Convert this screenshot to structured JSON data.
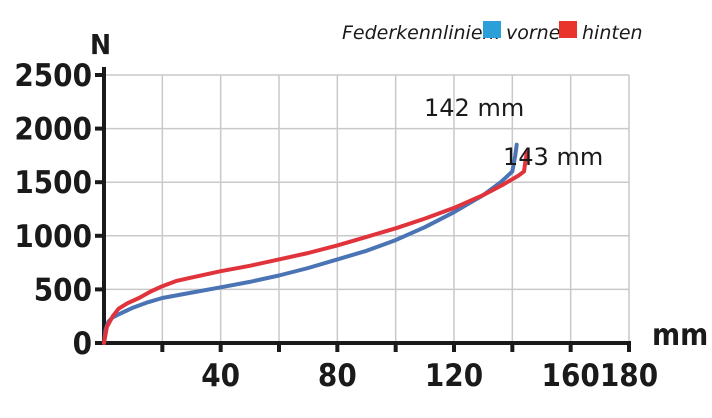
{
  "chart_data": {
    "type": "line",
    "title": "",
    "xlabel": "mm",
    "ylabel": "N",
    "xlim": [
      0,
      180
    ],
    "ylim": [
      0,
      2500
    ],
    "x_ticks": [
      40,
      80,
      120,
      160,
      180
    ],
    "y_ticks": [
      0,
      500,
      1000,
      1500,
      2000,
      2500
    ],
    "grid": true,
    "legend": {
      "title": "Federkennlinien:",
      "placement": "top-right",
      "entries": [
        {
          "name": "vorne",
          "color": "#2a9fd8"
        },
        {
          "name": "hinten",
          "color": "#e8342a"
        }
      ]
    },
    "series": [
      {
        "name": "vorne",
        "color": "#4a74b4",
        "points": [
          [
            0,
            0
          ],
          [
            0.5,
            120
          ],
          [
            1.5,
            200
          ],
          [
            3,
            240
          ],
          [
            6,
            280
          ],
          [
            10,
            330
          ],
          [
            15,
            380
          ],
          [
            20,
            420
          ],
          [
            30,
            470
          ],
          [
            40,
            520
          ],
          [
            50,
            570
          ],
          [
            60,
            630
          ],
          [
            70,
            700
          ],
          [
            80,
            780
          ],
          [
            90,
            860
          ],
          [
            100,
            960
          ],
          [
            110,
            1080
          ],
          [
            120,
            1220
          ],
          [
            130,
            1380
          ],
          [
            136,
            1500
          ],
          [
            140,
            1600
          ],
          [
            141,
            1750
          ],
          [
            141.5,
            1850
          ]
        ]
      },
      {
        "name": "hinten",
        "color": "#e0333b",
        "points": [
          [
            0,
            0
          ],
          [
            1,
            150
          ],
          [
            3,
            250
          ],
          [
            5,
            320
          ],
          [
            8,
            370
          ],
          [
            12,
            420
          ],
          [
            16,
            480
          ],
          [
            20,
            530
          ],
          [
            25,
            580
          ],
          [
            30,
            610
          ],
          [
            40,
            670
          ],
          [
            50,
            720
          ],
          [
            60,
            780
          ],
          [
            70,
            840
          ],
          [
            80,
            910
          ],
          [
            90,
            990
          ],
          [
            100,
            1070
          ],
          [
            110,
            1160
          ],
          [
            120,
            1260
          ],
          [
            130,
            1380
          ],
          [
            137,
            1480
          ],
          [
            142,
            1560
          ],
          [
            144,
            1600
          ],
          [
            144.5,
            1700
          ],
          [
            145,
            1780
          ]
        ]
      }
    ],
    "annotations": [
      {
        "text": "142 mm",
        "x": 124,
        "y": 2140
      },
      {
        "text": "143 mm",
        "x": 146,
        "y": 1750
      }
    ]
  }
}
